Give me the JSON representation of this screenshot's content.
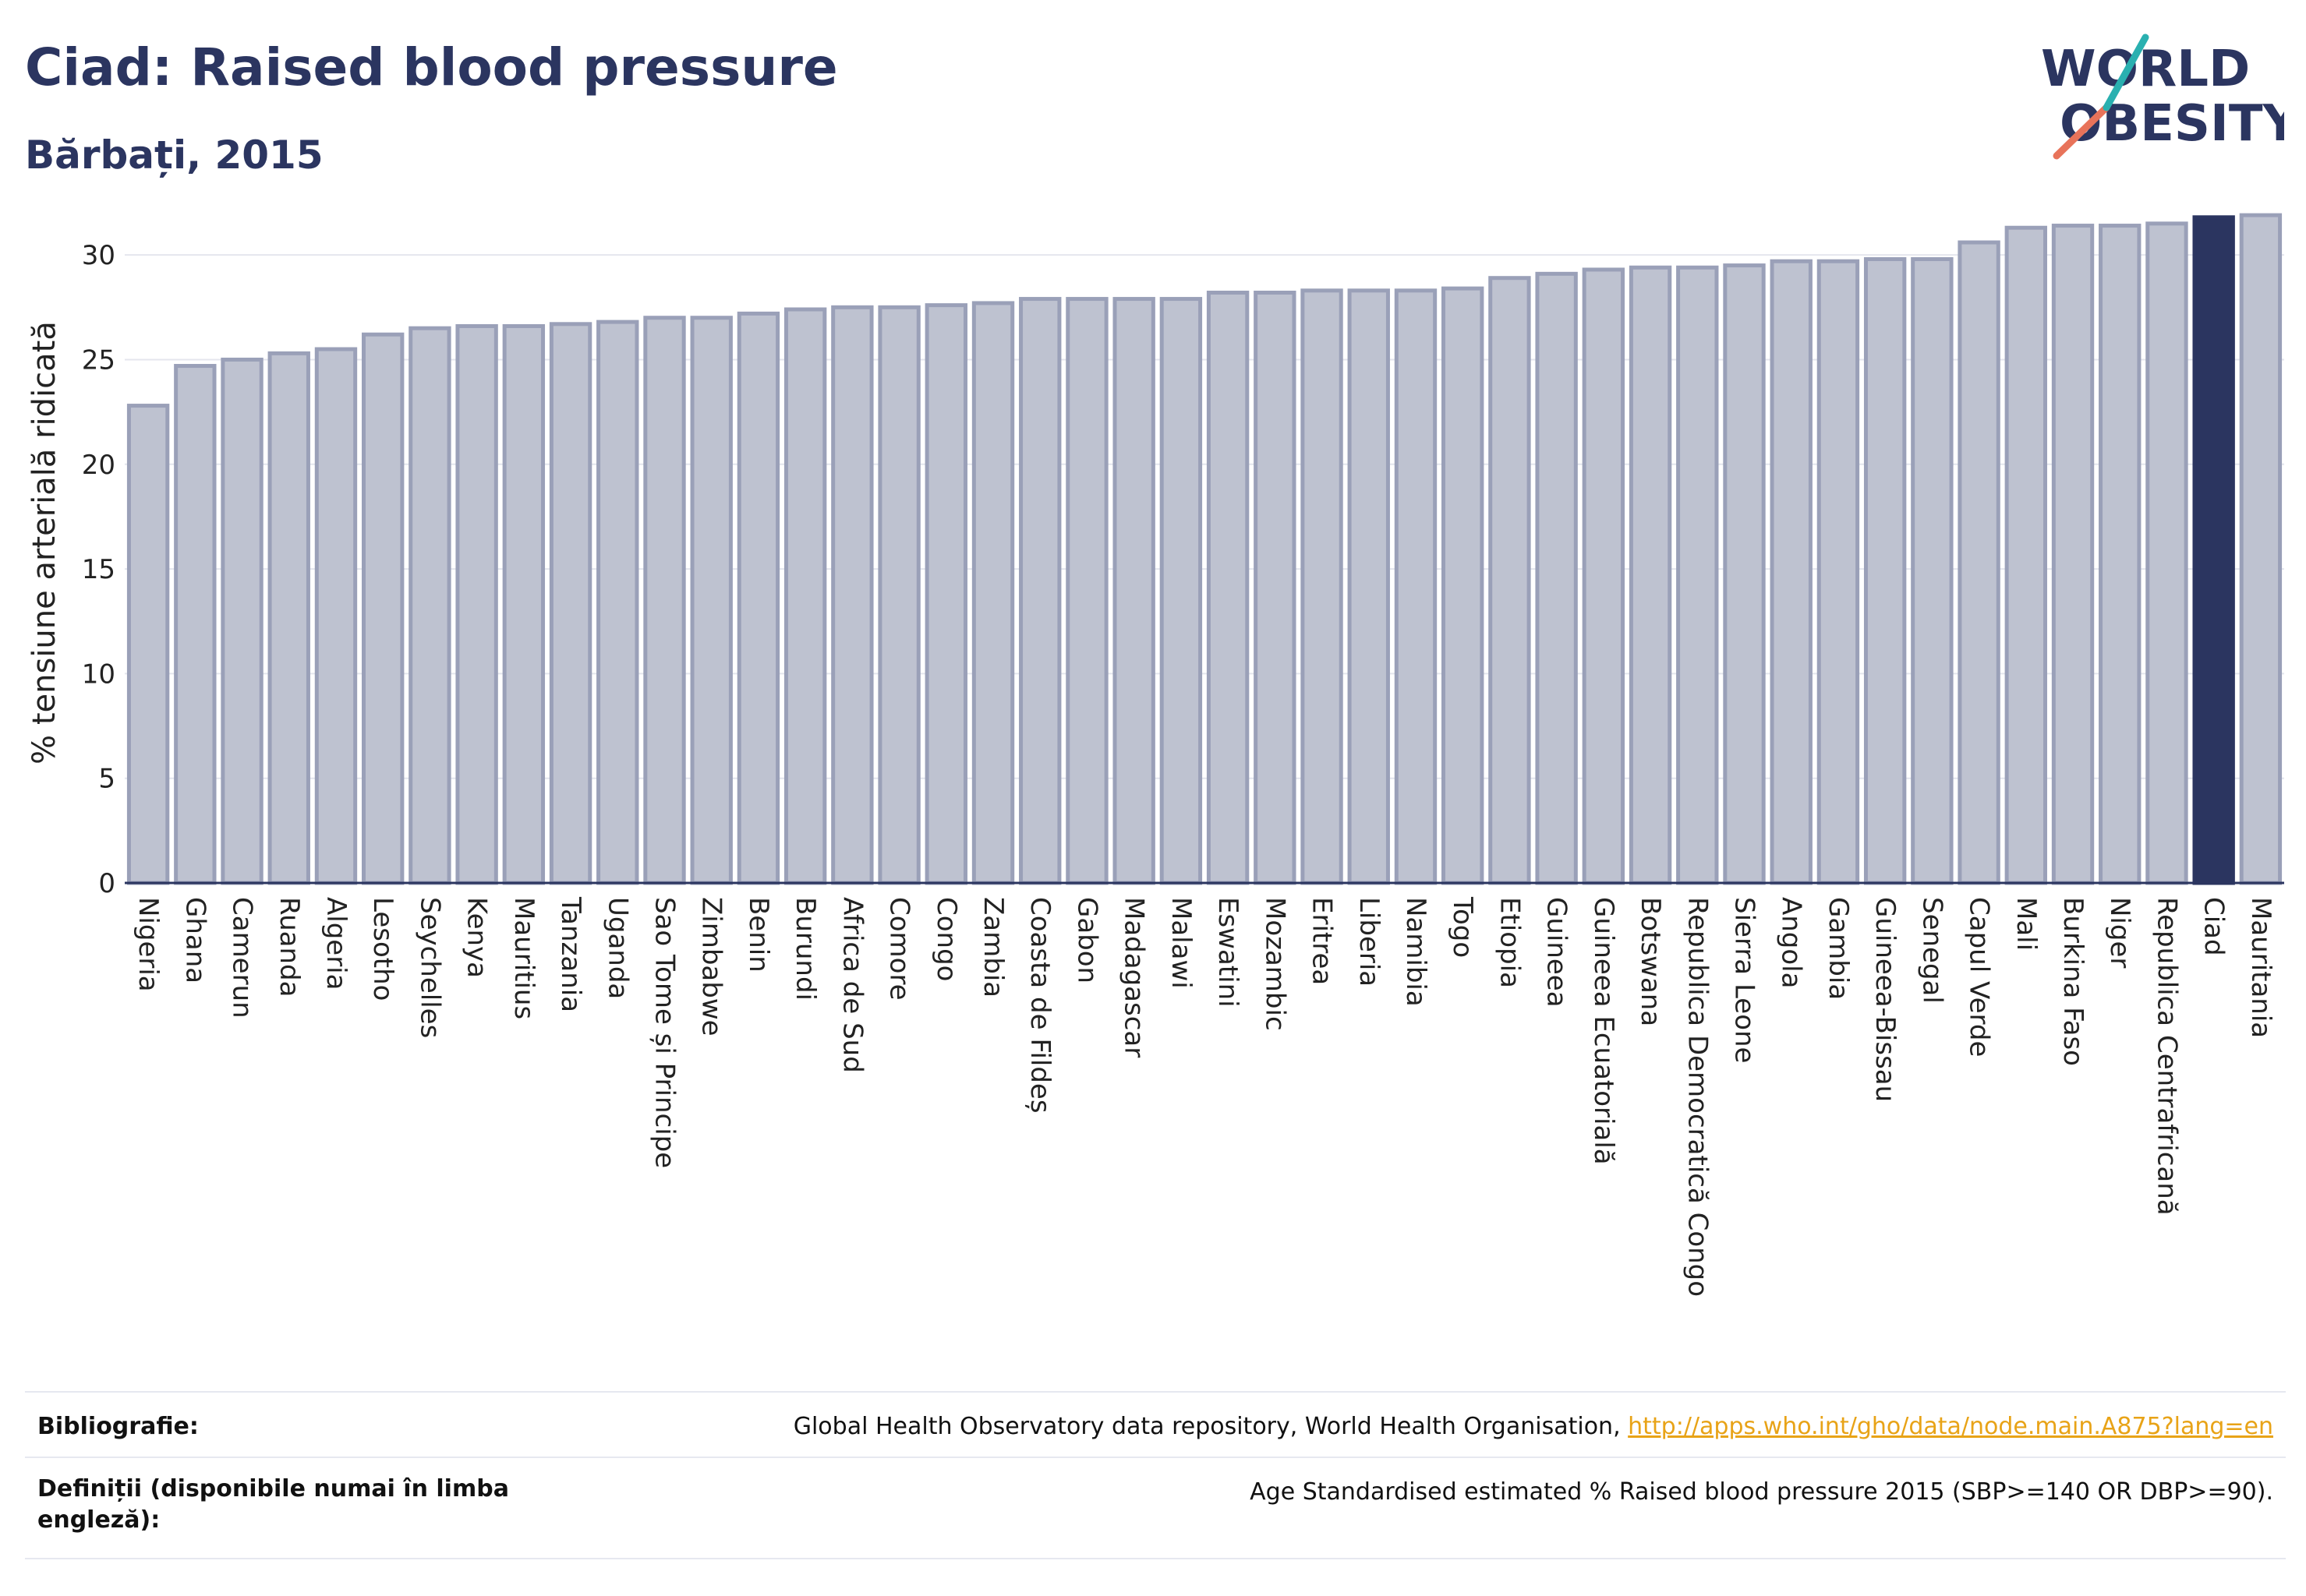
{
  "header": {
    "title": "Ciad: Raised blood pressure",
    "subtitle": "Bărbați, 2015"
  },
  "logo": {
    "line1": "WORLD",
    "line2": "OBESITY"
  },
  "colors": {
    "bar": "#bec2d0",
    "bar_border": "#9aa0b8",
    "highlight": "#2b3560",
    "text": "#2b3560"
  },
  "chart_data": {
    "type": "bar",
    "title": "Ciad: Raised blood pressure",
    "subtitle": "Bărbați, 2015",
    "ylabel": "% tensiune arterială ridicată",
    "xlabel": "",
    "ylim": [
      0,
      32.5
    ],
    "yticks": [
      0,
      5,
      10,
      15,
      20,
      25,
      30
    ],
    "grid": true,
    "highlight": "Ciad",
    "categories": [
      "Nigeria",
      "Ghana",
      "Camerun",
      "Ruanda",
      "Algeria",
      "Lesotho",
      "Seychelles",
      "Kenya",
      "Mauritius",
      "Tanzania",
      "Uganda",
      "Sao Tome și Principe",
      "Zimbabwe",
      "Benin",
      "Burundi",
      "Africa de Sud",
      "Comore",
      "Congo",
      "Zambia",
      "Coasta de Fildeș",
      "Gabon",
      "Madagascar",
      "Malawi",
      "Eswatini",
      "Mozambic",
      "Eritrea",
      "Liberia",
      "Namibia",
      "Togo",
      "Etiopia",
      "Guineea",
      "Guineea Ecuatorială",
      "Botswana",
      "Republica Democratică Congo",
      "Sierra Leone",
      "Angola",
      "Gambia",
      "Guineea-Bissau",
      "Senegal",
      "Capul Verde",
      "Mali",
      "Burkina Faso",
      "Niger",
      "Republica Centrafricană",
      "Ciad",
      "Mauritania"
    ],
    "values": [
      22.8,
      24.7,
      25.0,
      25.3,
      25.5,
      26.2,
      26.5,
      26.6,
      26.6,
      26.7,
      26.8,
      27.0,
      27.0,
      27.2,
      27.4,
      27.5,
      27.5,
      27.6,
      27.7,
      27.9,
      27.9,
      27.9,
      27.9,
      28.2,
      28.2,
      28.3,
      28.3,
      28.3,
      28.4,
      28.9,
      29.1,
      29.3,
      29.4,
      29.4,
      29.5,
      29.7,
      29.7,
      29.8,
      29.8,
      30.6,
      31.3,
      31.4,
      31.4,
      31.5,
      31.8,
      31.9
    ]
  },
  "footer": {
    "bibliography_label": "Bibliografie:",
    "bibliography_text": "Global Health Observatory data repository, World Health Organisation, ",
    "bibliography_link": "http://apps.who.int/gho/data/node.main.A875?lang=en",
    "definitions_label": "Definiții (disponibile numai în limba engleză):",
    "definitions_text": "Age Standardised estimated % Raised blood pressure 2015 (SBP>=140 OR DBP>=90)."
  }
}
